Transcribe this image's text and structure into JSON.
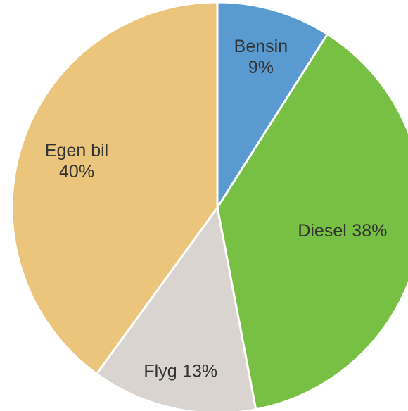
{
  "chart_data": {
    "type": "pie",
    "categories": [
      "Bensin",
      "Diesel",
      "Flyg",
      "Egen bil"
    ],
    "values": [
      9,
      38,
      13,
      40
    ],
    "value_labels": [
      "9%",
      "38%",
      "13%",
      "40%"
    ],
    "colors": [
      "#599ad0",
      "#77c043",
      "#d9d4cf",
      "#ecc57c"
    ]
  }
}
